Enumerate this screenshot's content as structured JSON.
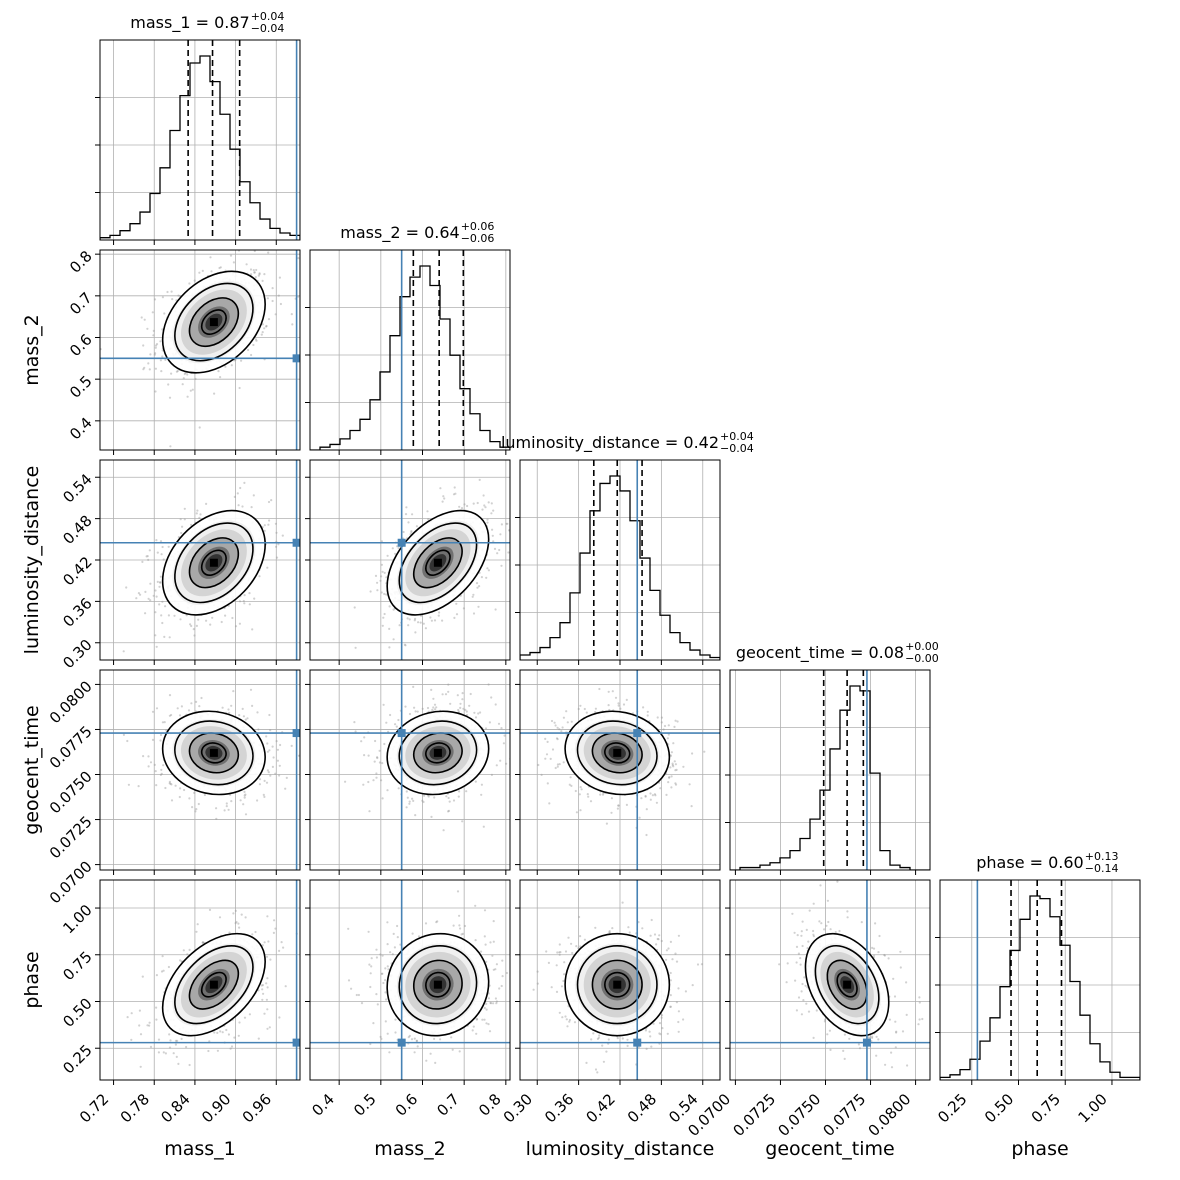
{
  "chart_data": {
    "type": "corner",
    "parameters": [
      "mass_1",
      "mass_2",
      "luminosity_distance",
      "geocent_time",
      "phase"
    ],
    "titles": [
      {
        "param": "mass_1",
        "median": "0.87",
        "plus": "+0.04",
        "minus": "−0.04"
      },
      {
        "param": "mass_2",
        "median": "0.64",
        "plus": "+0.06",
        "minus": "−0.06"
      },
      {
        "param": "luminosity_distance",
        "median": "0.42",
        "plus": "+0.04",
        "minus": "−0.04"
      },
      {
        "param": "geocent_time",
        "median": "0.08",
        "plus": "+0.00",
        "minus": "−0.00"
      },
      {
        "param": "phase",
        "median": "0.60",
        "plus": "+0.13",
        "minus": "−0.14"
      }
    ],
    "ranges": [
      [
        0.7,
        0.995
      ],
      [
        0.33,
        0.81
      ],
      [
        0.275,
        0.565
      ],
      [
        0.0697,
        0.0808
      ],
      [
        0.08,
        1.15
      ]
    ],
    "ticks": [
      [
        "0.72",
        "0.78",
        "0.84",
        "0.90",
        "0.96"
      ],
      [
        "0.4",
        "0.5",
        "0.6",
        "0.7",
        "0.8"
      ],
      [
        "0.30",
        "0.36",
        "0.42",
        "0.48",
        "0.54"
      ],
      [
        "0.0700",
        "0.0725",
        "0.0750",
        "0.0775",
        "0.0800"
      ],
      [
        "0.25",
        "0.50",
        "0.75",
        "1.00"
      ]
    ],
    "truths": [
      0.99,
      0.55,
      0.445,
      0.0773,
      0.28
    ],
    "quantiles": [
      [
        0.83,
        0.866,
        0.906
      ],
      [
        0.578,
        0.64,
        0.698
      ],
      [
        0.382,
        0.416,
        0.452
      ],
      [
        0.0749,
        0.0762,
        0.0771
      ],
      [
        0.46,
        0.6,
        0.73
      ]
    ],
    "histograms": [
      {
        "bins": 20,
        "counts": [
          1,
          2,
          4,
          7,
          12,
          20,
          31,
          47,
          62,
          76,
          79,
          68,
          54,
          39,
          25,
          16,
          9,
          5,
          3,
          2
        ]
      },
      {
        "bins": 20,
        "counts": [
          0,
          1,
          2,
          4,
          7,
          11,
          18,
          28,
          41,
          55,
          62,
          66,
          59,
          47,
          34,
          22,
          13,
          7,
          3,
          1
        ]
      },
      {
        "bins": 20,
        "counts": [
          2,
          3,
          5,
          9,
          15,
          27,
          43,
          60,
          71,
          74,
          68,
          56,
          41,
          28,
          18,
          11,
          7,
          4,
          2,
          1
        ]
      },
      {
        "bins": 20,
        "counts": [
          0,
          1,
          1,
          2,
          3,
          5,
          8,
          13,
          21,
          33,
          50,
          66,
          76,
          74,
          40,
          8,
          2,
          1,
          0,
          0
        ]
      },
      {
        "bins": 20,
        "counts": [
          1,
          2,
          4,
          8,
          15,
          24,
          36,
          50,
          62,
          71,
          70,
          63,
          52,
          38,
          25,
          14,
          7,
          3,
          1,
          1
        ]
      }
    ],
    "gaussians": {
      "mu": [
        0.868,
        0.637,
        0.416,
        0.0762,
        0.59
      ],
      "sigma": [
        0.036,
        0.058,
        0.036,
        0.0011,
        0.13
      ],
      "corr": [
        [
          1.0,
          0.35,
          0.35,
          -0.1,
          0.45
        ],
        [
          0.35,
          1.0,
          0.45,
          0.1,
          0.05
        ],
        [
          0.35,
          0.45,
          1.0,
          -0.1,
          0.0
        ],
        [
          -0.1,
          0.1,
          -0.1,
          1.0,
          -0.35
        ],
        [
          0.45,
          0.05,
          0.0,
          -0.35,
          1.0
        ]
      ]
    },
    "colors": {
      "truth": "#4682b4",
      "line": "#000000",
      "grid": "#b0b0b0",
      "density": "#000000"
    },
    "grid": true
  }
}
